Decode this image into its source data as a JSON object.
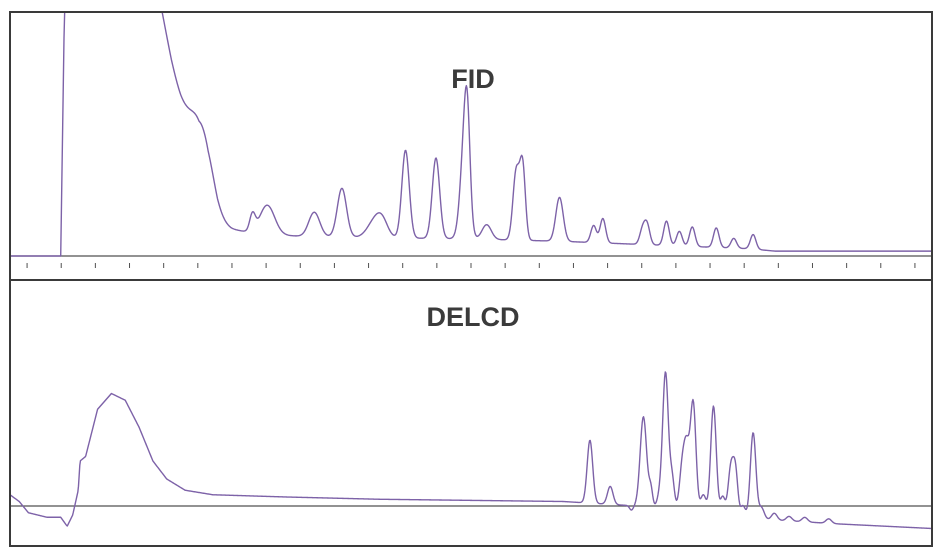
{
  "chart_data": [
    {
      "type": "line",
      "title": "FID",
      "xlabel": "",
      "ylabel": "",
      "grid": false,
      "line_color": "#7d62a8",
      "xlim": [
        0,
        100
      ],
      "ylim": [
        0,
        100
      ],
      "x_ticks_count": 27,
      "baseline": 0,
      "trace": {
        "background": [
          [
            0,
            0
          ],
          [
            5.5,
            0
          ],
          [
            5.9,
            100
          ],
          [
            16.5,
            100
          ],
          [
            17.5,
            80
          ],
          [
            18.5,
            62
          ],
          [
            19.5,
            45
          ],
          [
            20.5,
            28
          ],
          [
            21.5,
            18
          ],
          [
            22.5,
            13
          ],
          [
            24,
            11
          ],
          [
            27,
            9
          ],
          [
            32,
            8
          ],
          [
            40,
            7.5
          ],
          [
            50,
            7
          ],
          [
            60,
            6
          ],
          [
            70,
            4.5
          ],
          [
            80,
            3
          ],
          [
            83,
            2
          ],
          [
            90,
            2
          ],
          [
            100,
            2
          ]
        ],
        "peaks": [
          [
            20.4,
            18,
            1.1
          ],
          [
            21.4,
            14,
            1.0
          ],
          [
            26.3,
            7,
            0.3
          ],
          [
            27.9,
            12,
            0.8
          ],
          [
            33.0,
            10,
            0.6
          ],
          [
            36.0,
            20,
            0.5
          ],
          [
            39.6,
            7,
            0.8
          ],
          [
            40.4,
            5,
            0.6
          ],
          [
            42.9,
            36,
            0.4
          ],
          [
            46.2,
            33,
            0.4
          ],
          [
            49.3,
            38,
            0.45
          ],
          [
            49.6,
            30,
            0.3
          ],
          [
            51.7,
            6,
            0.5
          ],
          [
            54.9,
            28,
            0.35
          ],
          [
            55.6,
            30,
            0.3
          ],
          [
            59.6,
            18,
            0.4
          ],
          [
            63.3,
            7,
            0.3
          ],
          [
            64.3,
            10,
            0.3
          ],
          [
            68.6,
            6,
            0.3
          ],
          [
            69.1,
            8,
            0.3
          ],
          [
            71.2,
            10,
            0.3
          ],
          [
            72.6,
            6,
            0.3
          ],
          [
            74.0,
            8,
            0.3
          ],
          [
            76.6,
            8,
            0.3
          ],
          [
            78.5,
            4,
            0.3
          ],
          [
            80.6,
            6,
            0.3
          ]
        ]
      }
    },
    {
      "type": "line",
      "title": "DELCD",
      "xlabel": "",
      "ylabel": "",
      "grid": false,
      "line_color": "#7d62a8",
      "xlim": [
        0,
        100
      ],
      "ylim": [
        -10,
        100
      ],
      "x_ticks_count": 0,
      "baseline": 0,
      "trace": {
        "background": [
          [
            0,
            5
          ],
          [
            1,
            2
          ],
          [
            2,
            -3
          ],
          [
            4,
            -5
          ],
          [
            5.5,
            -5
          ],
          [
            6.2,
            -9
          ],
          [
            6.8,
            -4
          ],
          [
            7.4,
            7
          ],
          [
            7.6,
            20
          ],
          [
            8.2,
            22
          ],
          [
            9.5,
            43
          ],
          [
            11,
            50
          ],
          [
            12.5,
            47
          ],
          [
            14,
            35
          ],
          [
            15.5,
            20
          ],
          [
            17,
            12
          ],
          [
            19,
            7
          ],
          [
            22,
            5
          ],
          [
            30,
            4
          ],
          [
            40,
            3
          ],
          [
            50,
            2.5
          ],
          [
            60,
            2
          ],
          [
            68,
            0
          ],
          [
            75,
            -3
          ],
          [
            82,
            -6
          ],
          [
            86,
            -7
          ],
          [
            90,
            -8
          ],
          [
            95,
            -9
          ],
          [
            100,
            -10
          ]
        ],
        "peaks": [
          [
            62.9,
            28,
            0.3
          ],
          [
            65.1,
            8,
            0.3
          ],
          [
            67.4,
            -2,
            0.2
          ],
          [
            68.7,
            40,
            0.35
          ],
          [
            69.5,
            8,
            0.2
          ],
          [
            70.5,
            6,
            0.3
          ],
          [
            71.1,
            60,
            0.3
          ],
          [
            71.8,
            14,
            0.25
          ],
          [
            72.9,
            18,
            0.3
          ],
          [
            73.4,
            26,
            0.3
          ],
          [
            74.1,
            48,
            0.3
          ],
          [
            75.2,
            8,
            0.3
          ],
          [
            76.3,
            48,
            0.3
          ],
          [
            77.3,
            8,
            0.25
          ],
          [
            78.2,
            22,
            0.3
          ],
          [
            78.7,
            18,
            0.25
          ],
          [
            79.5,
            5,
            0.25
          ],
          [
            80.6,
            38,
            0.3
          ],
          [
            81.5,
            5,
            0.3
          ],
          [
            82.9,
            3,
            0.3
          ],
          [
            84.5,
            2,
            0.3
          ],
          [
            86.2,
            2,
            0.3
          ],
          [
            88.8,
            2,
            0.3
          ]
        ]
      }
    }
  ]
}
